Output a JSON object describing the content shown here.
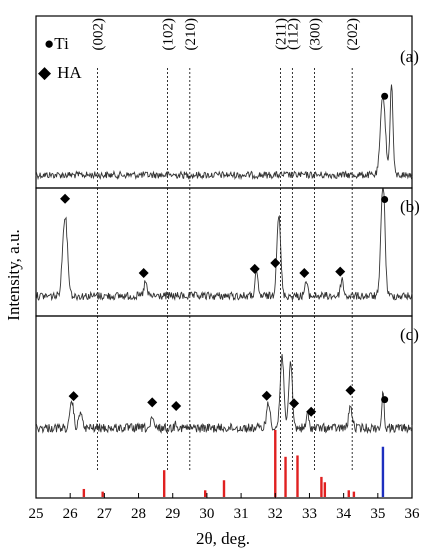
{
  "chart_data": {
    "type": "line",
    "xlabel": "2θ, deg.",
    "ylabel": "Intensity, a.u.",
    "xlim": [
      25,
      36
    ],
    "x_ticks": [
      25,
      26,
      27,
      28,
      29,
      30,
      31,
      32,
      33,
      34,
      35,
      36
    ],
    "grid": false,
    "legend": [
      {
        "symbol": "●",
        "label": "Ti"
      },
      {
        "symbol": "◆",
        "label": "HA"
      }
    ],
    "planes": [
      {
        "label": "(002)",
        "x": 26.8
      },
      {
        "label": "(102)",
        "x": 28.85
      },
      {
        "label": "(210)",
        "x": 29.5
      },
      {
        "label": "(211)",
        "x": 32.15
      },
      {
        "label": "(112)",
        "x": 32.5
      },
      {
        "label": "(300)",
        "x": 33.15
      },
      {
        "label": "(202)",
        "x": 34.25
      }
    ],
    "series": [
      {
        "name": "(a)",
        "panel": 0,
        "peaks": [
          {
            "x": 35.15,
            "h": 0.62,
            "w": 0.1
          },
          {
            "x": 35.4,
            "h": 0.7,
            "w": 0.06
          }
        ],
        "markers": [
          {
            "type": "Ti",
            "x": 35.2
          }
        ]
      },
      {
        "name": "(b)",
        "panel": 1,
        "peaks": [
          {
            "x": 25.85,
            "h": 0.58,
            "w": 0.1
          },
          {
            "x": 28.2,
            "h": 0.1,
            "w": 0.06
          },
          {
            "x": 31.45,
            "h": 0.16,
            "w": 0.06
          },
          {
            "x": 32.1,
            "h": 0.58,
            "w": 0.08
          },
          {
            "x": 32.9,
            "h": 0.1,
            "w": 0.06
          },
          {
            "x": 33.95,
            "h": 0.12,
            "w": 0.06
          },
          {
            "x": 35.15,
            "h": 0.85,
            "w": 0.08
          }
        ],
        "markers": [
          {
            "type": "HA",
            "x": 25.85
          },
          {
            "type": "HA",
            "x": 28.15
          },
          {
            "type": "HA",
            "x": 31.4
          },
          {
            "type": "HA",
            "x": 32.0
          },
          {
            "type": "HA",
            "x": 32.85
          },
          {
            "type": "HA",
            "x": 33.9
          },
          {
            "type": "Ti",
            "x": 35.2
          }
        ]
      },
      {
        "name": "(c)",
        "panel": 2,
        "peaks": [
          {
            "x": 26.05,
            "h": 0.22,
            "w": 0.07
          },
          {
            "x": 26.3,
            "h": 0.15,
            "w": 0.06
          },
          {
            "x": 28.4,
            "h": 0.08,
            "w": 0.05
          },
          {
            "x": 29.1,
            "h": 0.05,
            "w": 0.05
          },
          {
            "x": 31.8,
            "h": 0.2,
            "w": 0.08
          },
          {
            "x": 32.2,
            "h": 0.6,
            "w": 0.08
          },
          {
            "x": 32.45,
            "h": 0.55,
            "w": 0.07
          },
          {
            "x": 32.95,
            "h": 0.12,
            "w": 0.05
          },
          {
            "x": 34.2,
            "h": 0.18,
            "w": 0.07
          },
          {
            "x": 35.15,
            "h": 0.28,
            "w": 0.05
          }
        ],
        "markers": [
          {
            "type": "HA",
            "x": 26.1
          },
          {
            "type": "HA",
            "x": 28.4
          },
          {
            "type": "HA",
            "x": 29.1
          },
          {
            "type": "HA",
            "x": 31.75
          },
          {
            "type": "HA",
            "x": 32.55
          },
          {
            "type": "HA",
            "x": 33.05
          },
          {
            "type": "HA",
            "x": 34.2
          },
          {
            "type": "Ti",
            "x": 35.2
          }
        ]
      }
    ],
    "reference_bars": [
      {
        "x": 26.4,
        "h": 0.12,
        "color": "#e02020"
      },
      {
        "x": 26.95,
        "h": 0.08,
        "color": "#e02020"
      },
      {
        "x": 28.75,
        "h": 0.4,
        "color": "#e02020"
      },
      {
        "x": 29.95,
        "h": 0.1,
        "color": "#e02020"
      },
      {
        "x": 30.5,
        "h": 0.25,
        "color": "#e02020"
      },
      {
        "x": 32.0,
        "h": 1.0,
        "color": "#e02020"
      },
      {
        "x": 32.3,
        "h": 0.6,
        "color": "#e02020"
      },
      {
        "x": 32.65,
        "h": 0.62,
        "color": "#e02020"
      },
      {
        "x": 33.35,
        "h": 0.3,
        "color": "#e02020"
      },
      {
        "x": 33.45,
        "h": 0.22,
        "color": "#e02020"
      },
      {
        "x": 34.15,
        "h": 0.1,
        "color": "#e02020"
      },
      {
        "x": 34.3,
        "h": 0.08,
        "color": "#e02020"
      },
      {
        "x": 35.15,
        "h": 0.75,
        "color": "#1d2fbf"
      }
    ],
    "colors": {
      "trace": "#333333",
      "ha_ref": "#e02020",
      "ti_ref": "#1d2fbf"
    }
  }
}
